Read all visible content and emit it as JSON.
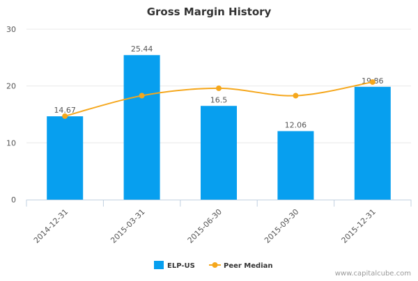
{
  "chart_data": {
    "type": "bar",
    "title": "Gross Margin History",
    "categories": [
      "2014-12-31",
      "2015-03-31",
      "2015-06-30",
      "2015-09-30",
      "2015-12-31"
    ],
    "series": [
      {
        "name": "ELP-US",
        "type": "bar",
        "values": [
          14.67,
          25.44,
          16.5,
          12.06,
          19.86
        ],
        "labels": [
          "14.67",
          "25.44",
          "16.5",
          "12.06",
          "19.86"
        ],
        "color": "#079FEF"
      },
      {
        "name": "Peer Median",
        "type": "line",
        "values": [
          14.7,
          18.3,
          19.6,
          18.3,
          20.7
        ],
        "color": "#F5A71C"
      }
    ],
    "ylim": [
      0,
      30
    ],
    "yticks": [
      0,
      10,
      20,
      30
    ],
    "grid": true,
    "legend": "bottom",
    "xlabel": "",
    "ylabel": ""
  },
  "watermark": "www.capitalcube.com",
  "colors": {
    "grid": "#E8E8E8",
    "axis": "#C0D0E0",
    "text": "#333333",
    "label": "#555555"
  }
}
